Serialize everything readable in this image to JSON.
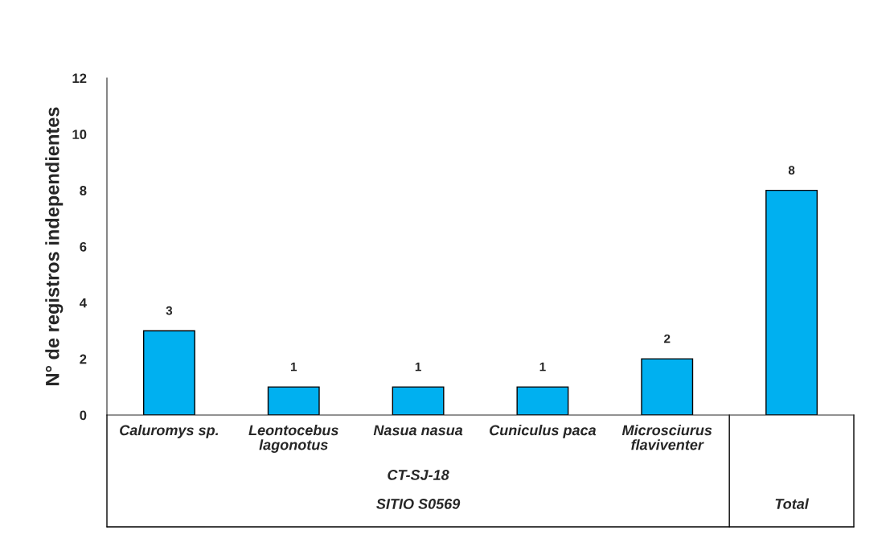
{
  "chart_data": {
    "type": "bar",
    "ylabel": "N° de registros independientes",
    "categories": [
      "Caluromys sp.",
      "Leontocebus\nlagonotus",
      "Nasua nasua",
      "Cuniculus paca",
      "Microsciurus\nflaviventer",
      null
    ],
    "values": [
      3,
      1,
      1,
      1,
      2,
      8
    ],
    "color": "#00b0f0",
    "data_labels": true,
    "ylim": [
      0,
      12
    ],
    "yticks": [
      0,
      2,
      4,
      6,
      8,
      10,
      12
    ],
    "grid": false,
    "annotations": [
      "CT-SJ-18",
      "SITIO S0569",
      "Total"
    ]
  }
}
